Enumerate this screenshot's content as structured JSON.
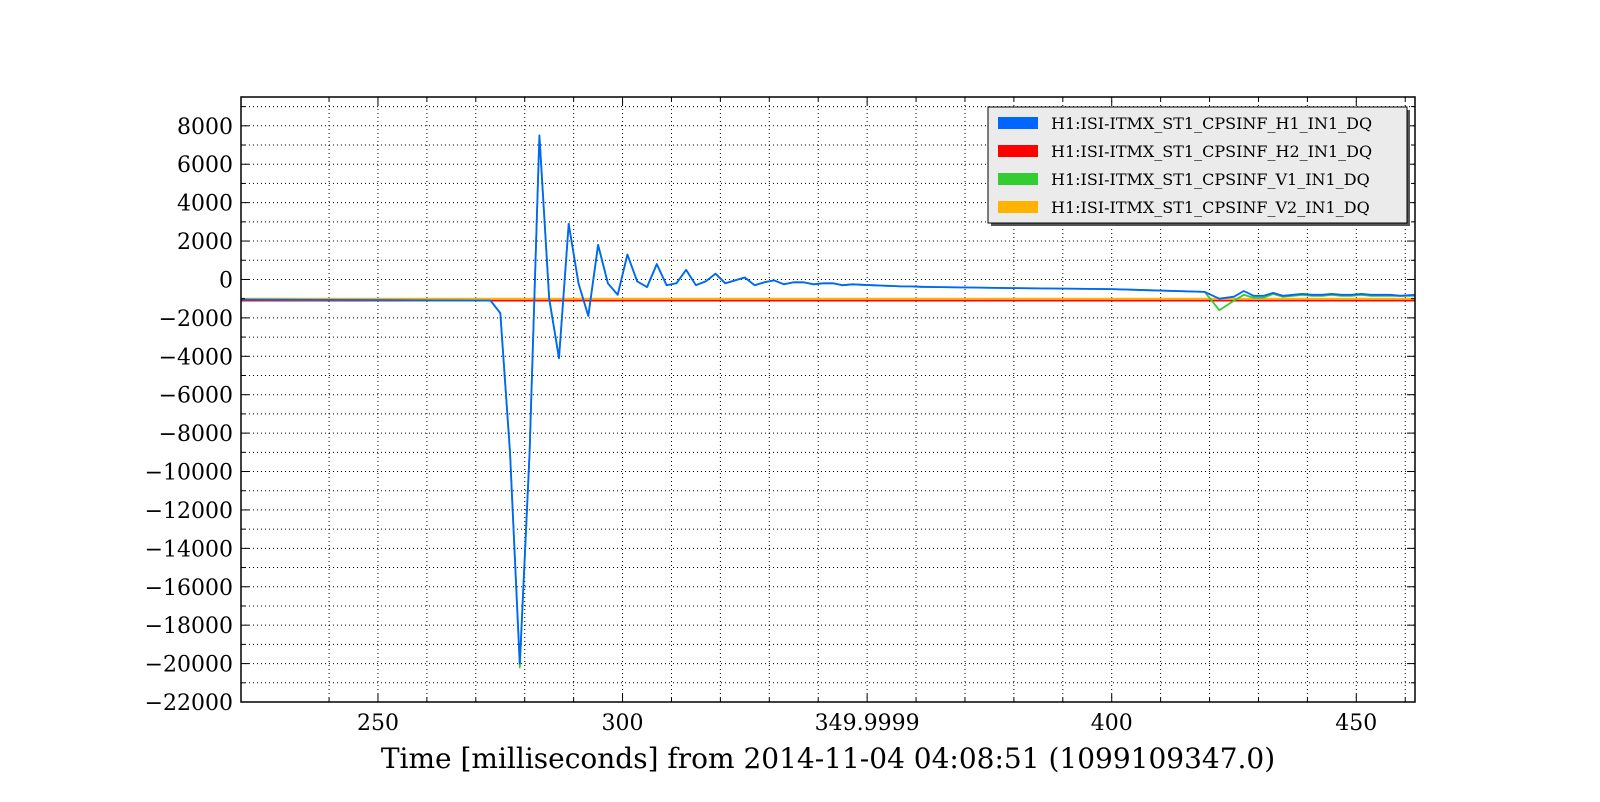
{
  "chart_data": {
    "type": "line",
    "title": "",
    "xlabel": "Time [milliseconds] from 2014-11-04 04:08:51 (1099109347.0)",
    "ylabel": "",
    "xlim": [
      222,
      462
    ],
    "ylim": [
      -22000,
      9500
    ],
    "grid": true,
    "legend_position": "top-right",
    "x_ticks": [
      {
        "value": 250,
        "label": "250"
      },
      {
        "value": 300,
        "label": "300"
      },
      {
        "value": 350,
        "label": "349.9999"
      },
      {
        "value": 400,
        "label": "400"
      },
      {
        "value": 450,
        "label": "450"
      }
    ],
    "x_minor_ticks": [
      240,
      260,
      270,
      280,
      290,
      310,
      320,
      330,
      340,
      360,
      370,
      380,
      390,
      410,
      420,
      430,
      440,
      460
    ],
    "y_ticks": [
      {
        "value": 8000,
        "label": "8000"
      },
      {
        "value": 6000,
        "label": "6000"
      },
      {
        "value": 4000,
        "label": "4000"
      },
      {
        "value": 2000,
        "label": "2000"
      },
      {
        "value": 0,
        "label": "0"
      },
      {
        "value": -2000,
        "label": "−2000"
      },
      {
        "value": -4000,
        "label": "−4000"
      },
      {
        "value": -6000,
        "label": "−6000"
      },
      {
        "value": -8000,
        "label": "−8000"
      },
      {
        "value": -10000,
        "label": "−10000"
      },
      {
        "value": -12000,
        "label": "−12000"
      },
      {
        "value": -14000,
        "label": "−14000"
      },
      {
        "value": -16000,
        "label": "−16000"
      },
      {
        "value": -18000,
        "label": "−18000"
      },
      {
        "value": -20000,
        "label": "−20000"
      },
      {
        "value": -22000,
        "label": "−22000"
      }
    ],
    "y_minor_ticks": [
      9000,
      7000,
      5000,
      3000,
      1000,
      -1000,
      -3000,
      -5000,
      -7000,
      -9000,
      -11000,
      -13000,
      -15000,
      -17000,
      -19000,
      -21000
    ],
    "series": [
      {
        "name": "H1:ISI-ITMX_ST1_CPSINF_H1_IN1_DQ",
        "color": "#0066ff",
        "x": [
          222,
          273,
          275,
          277,
          279,
          281,
          283,
          285,
          287,
          289,
          291,
          293,
          295,
          297,
          299,
          301,
          303,
          305,
          307,
          309,
          311,
          313,
          315,
          317,
          319,
          321,
          323,
          325,
          327,
          329,
          331,
          333,
          335,
          337,
          339,
          341,
          343,
          345,
          347,
          349,
          351,
          353,
          355,
          357,
          359,
          361,
          363,
          365,
          380,
          400,
          419,
          422,
          425,
          427,
          429,
          431,
          433,
          435,
          437,
          439,
          441,
          443,
          445,
          447,
          449,
          451,
          453,
          455,
          457,
          459,
          462
        ],
        "y": [
          -1050,
          -1100,
          -1750,
          -9000,
          -20000,
          -9000,
          7500,
          -1000,
          -4100,
          2900,
          -200,
          -1900,
          1800,
          -200,
          -800,
          1300,
          -100,
          -400,
          800,
          -300,
          -200,
          500,
          -300,
          -100,
          300,
          -200,
          -50,
          100,
          -300,
          -150,
          -50,
          -250,
          -150,
          -150,
          -250,
          -200,
          -200,
          -300,
          -250,
          -280,
          -300,
          -320,
          -340,
          -360,
          -360,
          -380,
          -390,
          -400,
          -450,
          -500,
          -650,
          -1000,
          -900,
          -600,
          -850,
          -850,
          -700,
          -850,
          -800,
          -750,
          -800,
          -800,
          -750,
          -800,
          -800,
          -750,
          -800,
          -800,
          -800,
          -850,
          -800
        ]
      },
      {
        "name": "H1:ISI-ITMX_ST1_CPSINF_H2_IN1_DQ",
        "color": "#ff0000",
        "x": [
          222,
          462
        ],
        "y": [
          -1100,
          -1100
        ]
      },
      {
        "name": "H1:ISI-ITMX_ST1_CPSINF_V1_IN1_DQ",
        "color": "#33cc33",
        "x": [
          222,
          273,
          275,
          277,
          279,
          281,
          283,
          285,
          287,
          289,
          291,
          293,
          295,
          297,
          299,
          301,
          303,
          305,
          307,
          309,
          311,
          313,
          315,
          317,
          319,
          321,
          323,
          325,
          327,
          329,
          331,
          333,
          335,
          337,
          339,
          341,
          343,
          345,
          347,
          349,
          351,
          353,
          355,
          357,
          359,
          361,
          363,
          365,
          380,
          400,
          419,
          422,
          425,
          427,
          429,
          431,
          433,
          435,
          437,
          439,
          441,
          443,
          445,
          447,
          449,
          451,
          453,
          455,
          457,
          459,
          462
        ],
        "y": [
          -1050,
          -1100,
          -1750,
          -9000,
          -20200,
          -9000,
          7500,
          -1000,
          -4100,
          2900,
          -200,
          -1900,
          1800,
          -200,
          -800,
          1300,
          -100,
          -400,
          800,
          -300,
          -200,
          500,
          -300,
          -100,
          300,
          -200,
          -50,
          100,
          -300,
          -150,
          -50,
          -250,
          -150,
          -150,
          -250,
          -200,
          -200,
          -300,
          -250,
          -280,
          -300,
          -320,
          -340,
          -360,
          -360,
          -380,
          -390,
          -400,
          -450,
          -500,
          -650,
          -1600,
          -1100,
          -800,
          -950,
          -950,
          -750,
          -900,
          -850,
          -800,
          -850,
          -850,
          -800,
          -850,
          -850,
          -800,
          -850,
          -850,
          -850,
          -850,
          -850
        ]
      },
      {
        "name": "H1:ISI-ITMX_ST1_CPSINF_V2_IN1_DQ",
        "color": "#ffb300",
        "x": [
          222,
          462
        ],
        "y": [
          -1000,
          -1000
        ]
      }
    ]
  }
}
